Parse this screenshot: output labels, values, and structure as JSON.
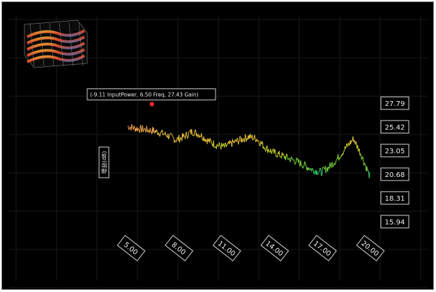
{
  "chart_data": {
    "type": "line",
    "title": "",
    "xlabel": "",
    "ylabel": "增益(dB)",
    "x_ticks": [
      "5.00",
      "8.00",
      "11.00",
      "14.00",
      "17.00",
      "20.00"
    ],
    "y_ticks": [
      "27.79",
      "25.42",
      "23.05",
      "20.68",
      "18.31",
      "15.94"
    ],
    "xlim": [
      5.0,
      20.0
    ],
    "ylim": [
      15.94,
      27.79
    ],
    "grid": true,
    "legend": "none",
    "colormap": [
      "#2fd070",
      "#7ad33a",
      "#c8d428",
      "#e8c23a",
      "#f0a050"
    ],
    "series": [
      {
        "x": [
          5.0,
          5.5,
          6.0,
          6.5,
          7.0,
          7.5,
          8.0,
          8.5,
          9.0,
          9.5,
          10.0,
          10.5,
          11.0,
          11.5,
          12.0,
          12.5,
          13.0,
          13.5,
          14.0,
          14.5,
          15.0,
          15.5,
          16.0,
          16.5,
          17.0,
          17.5,
          18.0,
          18.5,
          19.0,
          19.5,
          20.0
        ],
        "values": [
          25.3,
          25.1,
          25.0,
          24.9,
          24.7,
          24.4,
          24.0,
          24.3,
          24.8,
          24.5,
          23.9,
          23.5,
          23.3,
          23.7,
          24.0,
          24.3,
          24.1,
          23.3,
          22.8,
          22.5,
          22.2,
          21.9,
          21.5,
          21.1,
          20.9,
          21.4,
          22.2,
          23.2,
          24.1,
          22.5,
          20.5
        ]
      }
    ],
    "tooltip": "(-9.11 InputPower, 6.50 Freq, 27.43 Gain)",
    "highlight_point": {
      "x": 6.5,
      "y": 27.43
    }
  },
  "thumbnail": {
    "icon": "3d-surface-preview-icon"
  },
  "colors": {
    "background": "#000000",
    "grid": "#1a1a1a",
    "highlight": "#ff2a2a"
  }
}
